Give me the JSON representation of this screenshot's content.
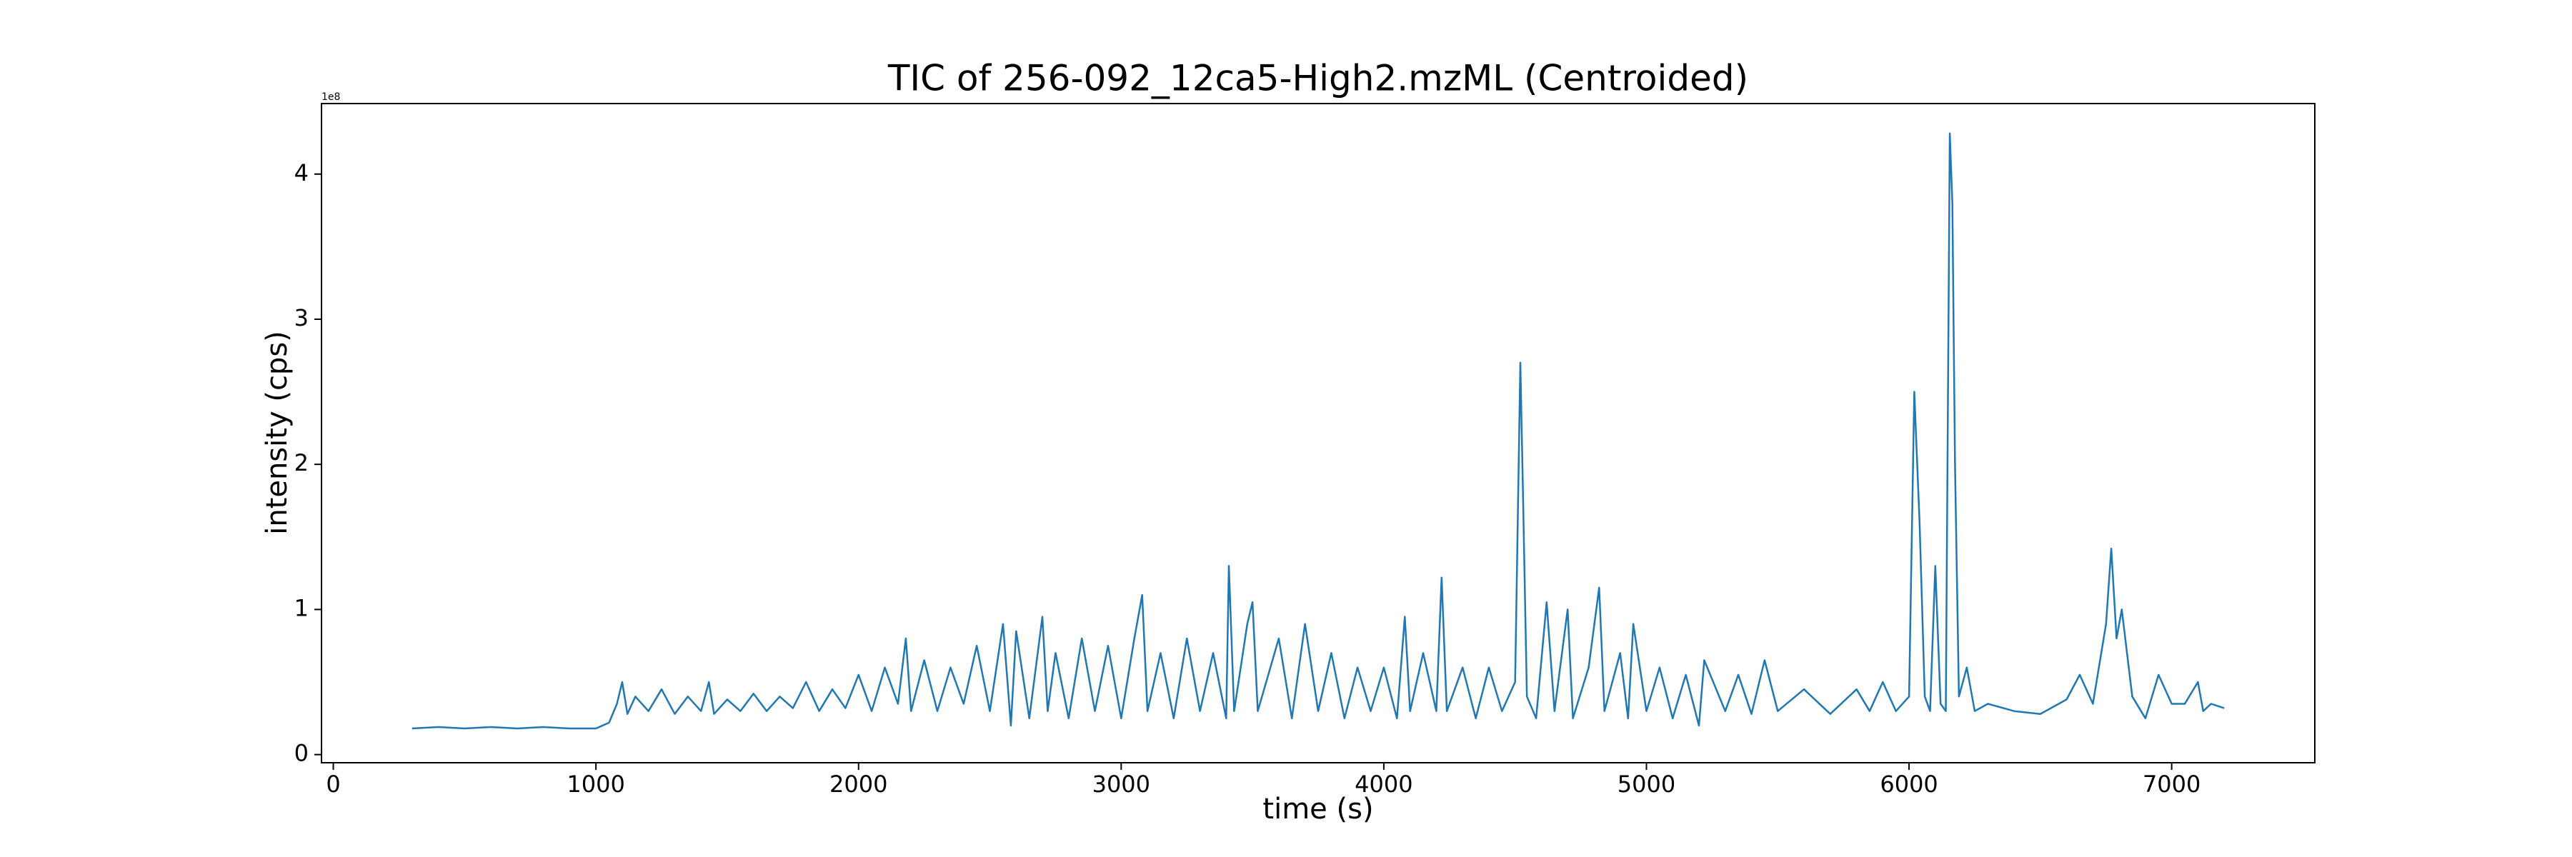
{
  "chart_data": {
    "type": "line",
    "title": "TIC of 256-092_12ca5-High2.mzML (Centroided)",
    "xlabel": "time (s)",
    "ylabel": "intensity (cps)",
    "y_offset_label": "1e8",
    "xlim": [
      -45,
      7545
    ],
    "ylim": [
      -0.056,
      4.486
    ],
    "xticks": [
      0,
      1000,
      2000,
      3000,
      4000,
      5000,
      6000,
      7000
    ],
    "yticks": [
      0,
      1,
      2,
      3,
      4
    ],
    "x": [
      300,
      400,
      500,
      600,
      700,
      800,
      900,
      1000,
      1050,
      1080,
      1100,
      1120,
      1150,
      1200,
      1250,
      1300,
      1350,
      1400,
      1430,
      1450,
      1500,
      1550,
      1600,
      1650,
      1700,
      1750,
      1800,
      1850,
      1900,
      1950,
      2000,
      2050,
      2100,
      2150,
      2180,
      2200,
      2250,
      2300,
      2350,
      2400,
      2450,
      2500,
      2550,
      2580,
      2600,
      2650,
      2700,
      2720,
      2750,
      2800,
      2850,
      2900,
      2950,
      3000,
      3050,
      3080,
      3100,
      3150,
      3200,
      3250,
      3300,
      3350,
      3400,
      3410,
      3430,
      3480,
      3500,
      3520,
      3600,
      3650,
      3700,
      3750,
      3800,
      3850,
      3900,
      3950,
      4000,
      4050,
      4080,
      4100,
      4150,
      4200,
      4220,
      4240,
      4300,
      4350,
      4400,
      4450,
      4500,
      4520,
      4530,
      4545,
      4580,
      4620,
      4650,
      4700,
      4720,
      4780,
      4820,
      4840,
      4900,
      4930,
      4950,
      5000,
      5050,
      5100,
      5150,
      5200,
      5220,
      5300,
      5350,
      5400,
      5450,
      5500,
      5600,
      5700,
      5800,
      5850,
      5900,
      5950,
      6000,
      6020,
      6040,
      6060,
      6080,
      6100,
      6120,
      6140,
      6155,
      6165,
      6175,
      6190,
      6220,
      6250,
      6300,
      6400,
      6500,
      6600,
      6650,
      6700,
      6750,
      6770,
      6790,
      6810,
      6850,
      6900,
      6950,
      7000,
      7050,
      7100,
      7120,
      7150,
      7200
    ],
    "series": [
      {
        "name": "TIC",
        "color": "#1f77b4",
        "values": [
          0.18,
          0.19,
          0.18,
          0.19,
          0.18,
          0.19,
          0.18,
          0.18,
          0.22,
          0.35,
          0.5,
          0.28,
          0.4,
          0.3,
          0.45,
          0.28,
          0.4,
          0.3,
          0.5,
          0.28,
          0.38,
          0.3,
          0.42,
          0.3,
          0.4,
          0.32,
          0.5,
          0.3,
          0.45,
          0.32,
          0.55,
          0.3,
          0.6,
          0.35,
          0.8,
          0.3,
          0.65,
          0.3,
          0.6,
          0.35,
          0.75,
          0.3,
          0.9,
          0.2,
          0.85,
          0.25,
          0.95,
          0.3,
          0.7,
          0.25,
          0.8,
          0.3,
          0.75,
          0.25,
          0.8,
          1.1,
          0.3,
          0.7,
          0.25,
          0.8,
          0.3,
          0.7,
          0.25,
          1.3,
          0.3,
          0.9,
          1.05,
          0.3,
          0.8,
          0.25,
          0.9,
          0.3,
          0.7,
          0.25,
          0.6,
          0.3,
          0.6,
          0.25,
          0.95,
          0.3,
          0.7,
          0.3,
          1.22,
          0.3,
          0.6,
          0.25,
          0.6,
          0.3,
          0.5,
          2.7,
          1.8,
          0.4,
          0.25,
          1.05,
          0.3,
          1.0,
          0.25,
          0.6,
          1.15,
          0.3,
          0.7,
          0.25,
          0.9,
          0.3,
          0.6,
          0.25,
          0.55,
          0.2,
          0.65,
          0.3,
          0.55,
          0.28,
          0.65,
          0.3,
          0.45,
          0.28,
          0.45,
          0.3,
          0.5,
          0.3,
          0.4,
          2.5,
          1.6,
          0.4,
          0.3,
          1.3,
          0.35,
          0.3,
          4.28,
          3.8,
          2.0,
          0.4,
          0.6,
          0.3,
          0.35,
          0.3,
          0.28,
          0.38,
          0.55,
          0.35,
          0.9,
          1.42,
          0.8,
          1.0,
          0.4,
          0.25,
          0.55,
          0.35,
          0.35,
          0.5,
          0.3,
          0.35,
          0.32
        ]
      }
    ]
  }
}
